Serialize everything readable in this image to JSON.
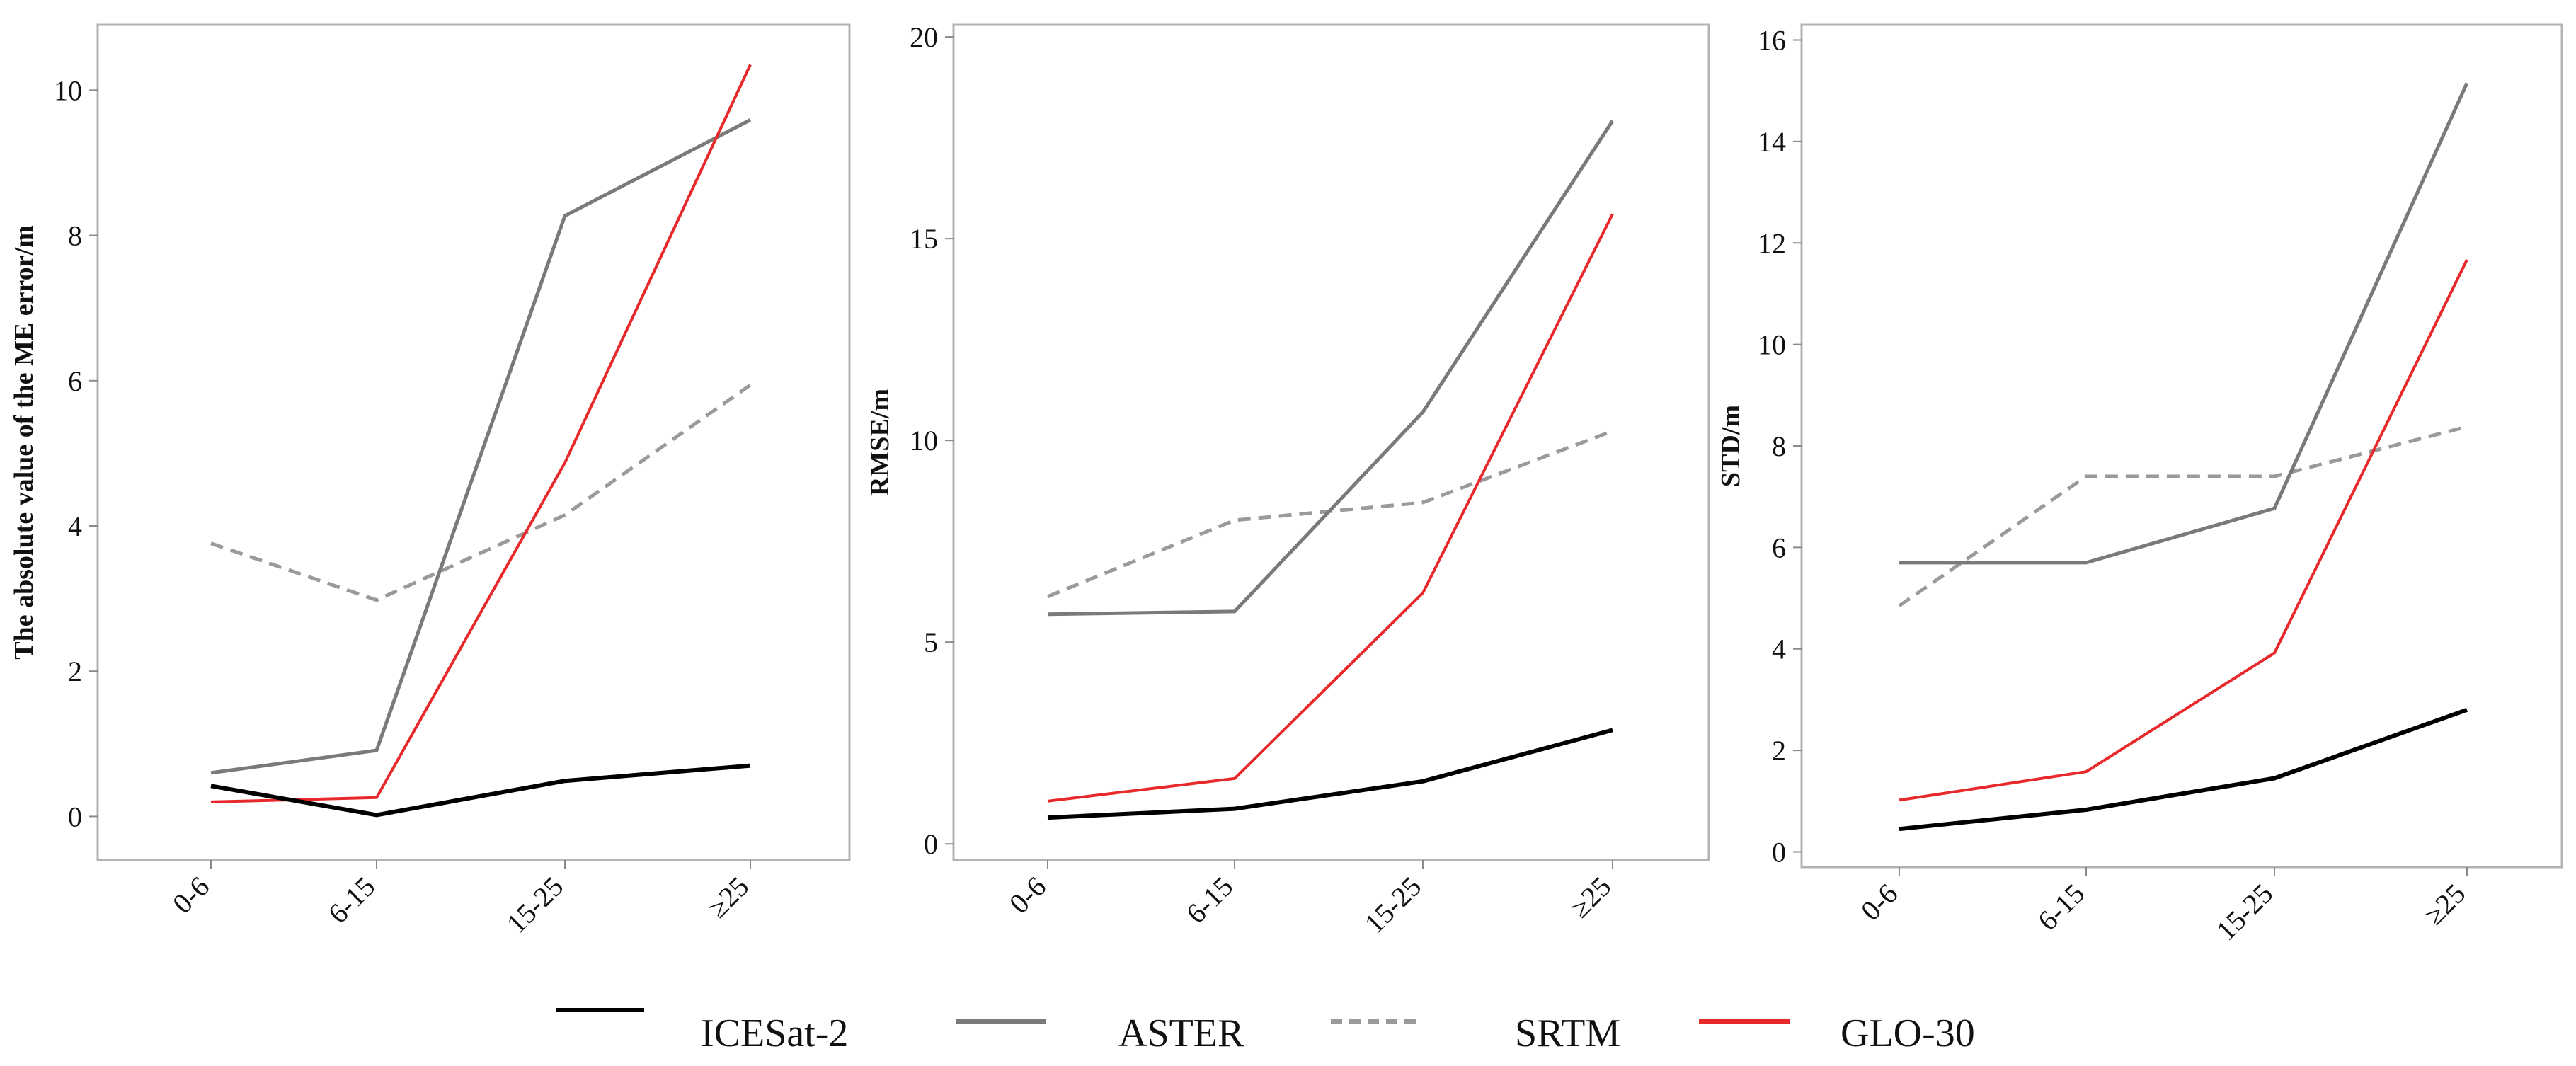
{
  "chart_data": [
    {
      "type": "line",
      "title": "",
      "xlabel": "",
      "ylabel": "The absolute value of the ME error/m",
      "categories": [
        "0-6",
        "6-15",
        "15-25",
        "≥25"
      ],
      "ylim": [
        -0.6,
        10.9
      ],
      "yticks": [
        0,
        2,
        4,
        6,
        8,
        10
      ],
      "series": [
        {
          "name": "ICESat-2",
          "values": [
            0.42,
            0.02,
            0.49,
            0.7
          ]
        },
        {
          "name": "ASTER",
          "values": [
            0.6,
            0.91,
            8.27,
            9.59
          ]
        },
        {
          "name": "SRTM",
          "values": [
            3.76,
            2.98,
            4.15,
            5.94
          ]
        },
        {
          "name": "GLO-30",
          "values": [
            0.2,
            0.26,
            4.87,
            10.35
          ]
        }
      ]
    },
    {
      "type": "line",
      "title": "",
      "xlabel": "",
      "ylabel": "RMSE/m",
      "categories": [
        "0-6",
        "6-15",
        "15-25",
        "≥25"
      ],
      "ylim": [
        -0.4,
        20.3
      ],
      "yticks": [
        0,
        5,
        10,
        15,
        20
      ],
      "series": [
        {
          "name": "ICESat-2",
          "values": [
            0.65,
            0.87,
            1.55,
            2.82
          ]
        },
        {
          "name": "ASTER",
          "values": [
            5.69,
            5.76,
            10.7,
            17.92
          ]
        },
        {
          "name": "SRTM",
          "values": [
            6.13,
            8.02,
            8.46,
            10.23
          ]
        },
        {
          "name": "GLO-30",
          "values": [
            1.06,
            1.62,
            6.22,
            15.61
          ]
        }
      ]
    },
    {
      "type": "line",
      "title": "",
      "xlabel": "",
      "ylabel": "STD/m",
      "categories": [
        "0-6",
        "6-15",
        "15-25",
        "≥25"
      ],
      "ylim": [
        -0.3,
        16.3
      ],
      "yticks": [
        0,
        2,
        4,
        6,
        8,
        10,
        12,
        14,
        16
      ],
      "series": [
        {
          "name": "ICESat-2",
          "values": [
            0.45,
            0.83,
            1.45,
            2.8
          ]
        },
        {
          "name": "ASTER",
          "values": [
            5.7,
            5.7,
            6.77,
            15.15
          ]
        },
        {
          "name": "SRTM",
          "values": [
            4.85,
            7.4,
            7.4,
            8.38
          ]
        },
        {
          "name": "GLO-30",
          "values": [
            1.02,
            1.58,
            3.92,
            11.67
          ]
        }
      ]
    }
  ],
  "legend": {
    "placement": "bottom-center",
    "items": [
      {
        "label": "ICESat-2",
        "color": "#000000",
        "dash": "solid"
      },
      {
        "label": "ASTER",
        "color": "#7a7a7a",
        "dash": "solid"
      },
      {
        "label": "SRTM",
        "color": "#9a9a9a",
        "dash": "dashed"
      },
      {
        "label": "GLO-30",
        "color": "#e8292b",
        "dash": "solid"
      }
    ]
  }
}
